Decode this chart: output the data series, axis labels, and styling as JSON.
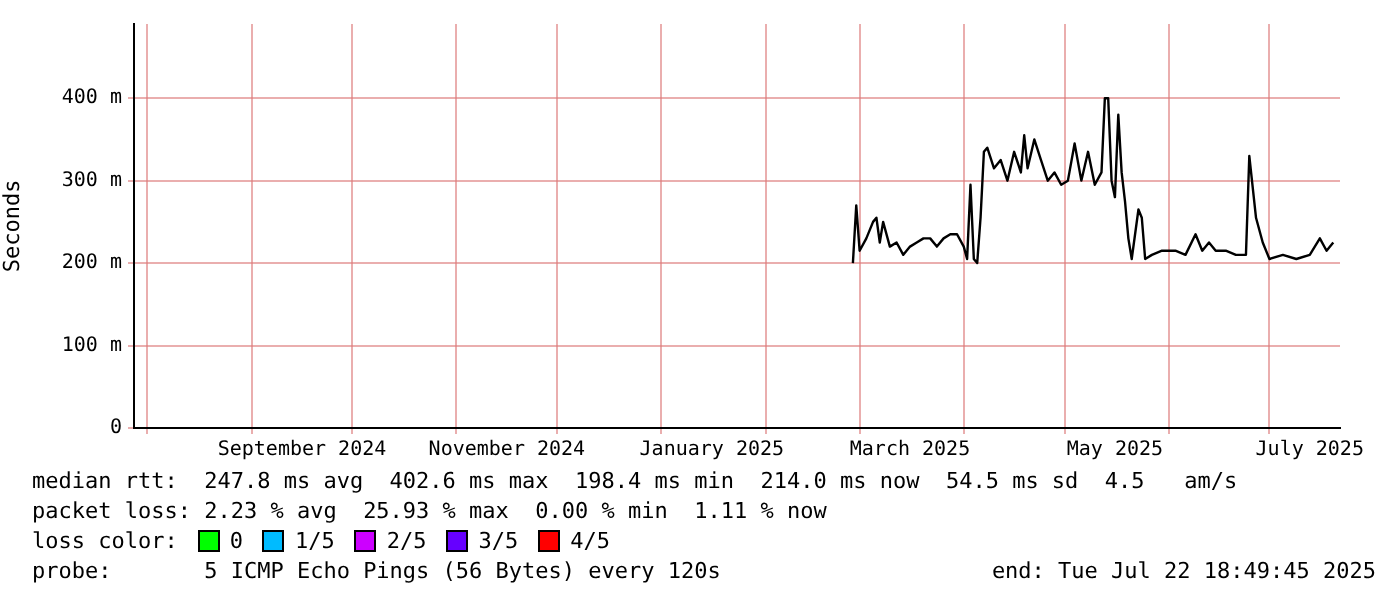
{
  "chart_data": {
    "type": "line",
    "ylabel": "Seconds",
    "x": [
      "2025-02-27",
      "2025-02-28",
      "2025-03-01",
      "2025-03-03",
      "2025-03-05",
      "2025-03-06",
      "2025-03-07",
      "2025-03-08",
      "2025-03-10",
      "2025-03-12",
      "2025-03-14",
      "2025-03-16",
      "2025-03-18",
      "2025-03-20",
      "2025-03-22",
      "2025-03-24",
      "2025-03-26",
      "2025-03-28",
      "2025-03-30",
      "2025-04-01",
      "2025-04-02",
      "2025-04-03",
      "2025-04-04",
      "2025-04-05",
      "2025-04-06",
      "2025-04-07",
      "2025-04-08",
      "2025-04-10",
      "2025-04-12",
      "2025-04-14",
      "2025-04-16",
      "2025-04-18",
      "2025-04-19",
      "2025-04-20",
      "2025-04-22",
      "2025-04-24",
      "2025-04-26",
      "2025-04-28",
      "2025-04-30",
      "2025-05-02",
      "2025-05-04",
      "2025-05-06",
      "2025-05-08",
      "2025-05-10",
      "2025-05-12",
      "2025-05-13",
      "2025-05-14",
      "2025-05-15",
      "2025-05-16",
      "2025-05-17",
      "2025-05-18",
      "2025-05-19",
      "2025-05-20",
      "2025-05-21",
      "2025-05-23",
      "2025-05-24",
      "2025-05-25",
      "2025-05-27",
      "2025-05-30",
      "2025-06-03",
      "2025-06-06",
      "2025-06-09",
      "2025-06-11",
      "2025-06-13",
      "2025-06-15",
      "2025-06-18",
      "2025-06-21",
      "2025-06-24",
      "2025-06-25",
      "2025-06-27",
      "2025-06-29",
      "2025-07-01",
      "2025-07-05",
      "2025-07-09",
      "2025-07-13",
      "2025-07-16",
      "2025-07-18",
      "2025-07-20"
    ],
    "series": [
      {
        "color": "#000000",
        "values": [
          200,
          270,
          215,
          230,
          250,
          255,
          225,
          250,
          220,
          225,
          210,
          220,
          225,
          230,
          230,
          220,
          230,
          235,
          235,
          220,
          205,
          295,
          205,
          200,
          255,
          335,
          340,
          315,
          325,
          300,
          335,
          310,
          355,
          315,
          350,
          325,
          300,
          310,
          295,
          300,
          345,
          300,
          335,
          295,
          310,
          400,
          400,
          300,
          280,
          380,
          310,
          275,
          230,
          205,
          265,
          255,
          205,
          210,
          215,
          215,
          210,
          235,
          215,
          225,
          215,
          215,
          210,
          210,
          330,
          255,
          225,
          205,
          210,
          205,
          210,
          230,
          215,
          225
        ]
      }
    ],
    "xlim": [
      "2024-07-28",
      "2025-07-22"
    ],
    "xticks": [
      {
        "value": "2024-08-01",
        "label": null
      },
      {
        "value": "2024-09-01",
        "label": null
      },
      {
        "value": "2024-09-16",
        "label": "September 2024"
      },
      {
        "value": "2024-10-01",
        "label": null
      },
      {
        "value": "2024-11-01",
        "label": null
      },
      {
        "value": "2024-11-16",
        "label": "November 2024"
      },
      {
        "value": "2024-12-01",
        "label": null
      },
      {
        "value": "2025-01-01",
        "label": null
      },
      {
        "value": "2025-01-16",
        "label": "January 2025"
      },
      {
        "value": "2025-02-01",
        "label": null
      },
      {
        "value": "2025-03-01",
        "label": null
      },
      {
        "value": "2025-03-16",
        "label": "March 2025"
      },
      {
        "value": "2025-04-01",
        "label": null
      },
      {
        "value": "2025-05-01",
        "label": null
      },
      {
        "value": "2025-05-16",
        "label": "May 2025"
      },
      {
        "value": "2025-06-01",
        "label": null
      },
      {
        "value": "2025-07-01",
        "label": null
      },
      {
        "value": "2025-07-13",
        "label": "July 2025"
      }
    ],
    "ylim": [
      0,
      490
    ],
    "yticks": [
      {
        "value": 0,
        "label": "0"
      },
      {
        "value": 100,
        "label": "100 m"
      },
      {
        "value": 200,
        "label": "200 m"
      },
      {
        "value": 300,
        "label": "300 m"
      },
      {
        "value": 400,
        "label": "400 m"
      }
    ],
    "grid": true,
    "legend": false,
    "marker": "none",
    "line_style": "solid",
    "annotations": [
      "median rtt:  247.8 ms avg  402.6 ms max  198.4 ms min  214.0 ms now  54.5 ms sd  4.5   am/s",
      "packet loss: 2.23 % avg  25.93 % max  0.00 % min  1.11 % now",
      "loss color:",
      "0",
      "1/5",
      "2/5",
      "3/5",
      "4/5",
      "probe:       5 ICMP Echo Pings (56 Bytes) every 120s",
      "end: Tue Jul 22 18:49:45 2025"
    ]
  }
}
